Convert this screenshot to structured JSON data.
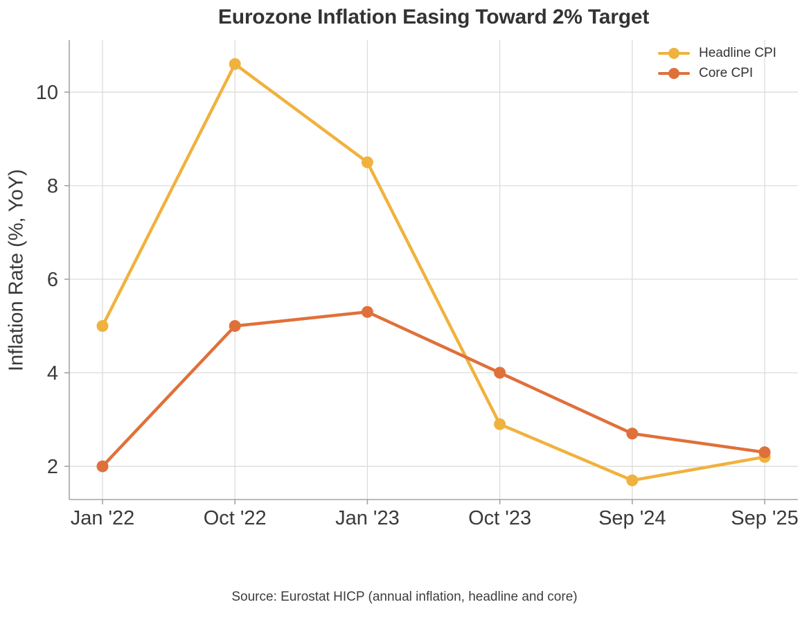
{
  "chart_data": {
    "type": "line",
    "title": "Eurozone Inflation Easing Toward 2% Target",
    "xlabel": "",
    "ylabel": "Inflation Rate (%, YoY)",
    "categories": [
      "Jan '22",
      "Oct '22",
      "Jan '23",
      "Oct '23",
      "Sep '24",
      "Sep '25"
    ],
    "series": [
      {
        "name": "Headline CPI",
        "color": "#F0B23E",
        "values": [
          5.0,
          10.6,
          8.5,
          2.9,
          1.7,
          2.2
        ]
      },
      {
        "name": "Core CPI",
        "color": "#E0703A",
        "values": [
          2.0,
          5.0,
          5.3,
          4.0,
          2.7,
          2.3
        ]
      }
    ],
    "yticks": [
      2,
      4,
      6,
      8,
      10
    ],
    "ylim": [
      1.29,
      11.11
    ],
    "grid": true,
    "legend_position": "top-right",
    "caption": "Source: Eurostat HICP (annual inflation, headline and core)"
  },
  "colors": {
    "grid": "#dcdcdc",
    "spine": "#a3a3a3",
    "tick_label": "#3a3a3a",
    "title": "#333333",
    "legend_text": "#333333",
    "caption": "#3d3d3d"
  }
}
